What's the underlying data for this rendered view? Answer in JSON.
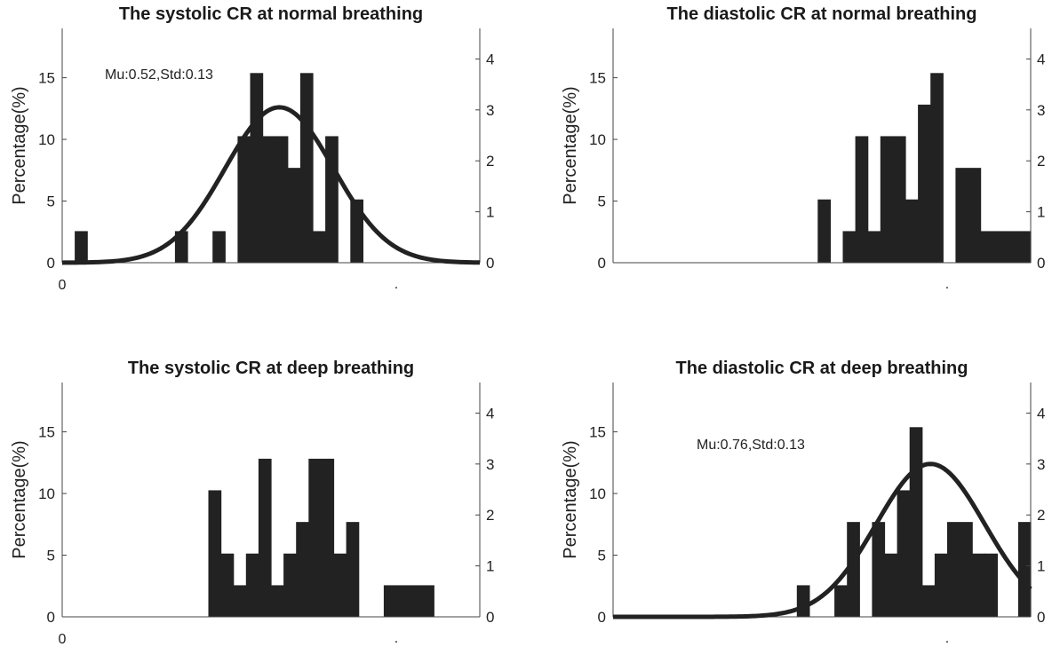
{
  "chart_data": [
    {
      "type": "bar",
      "title": "The systolic CR at normal breathing",
      "ylabel": "Percentage(%)",
      "annotation": "Mu:0.52,Std:0.13",
      "xlim": [
        0,
        1
      ],
      "ylim": [
        0,
        19
      ],
      "yticks": [
        0,
        5,
        10,
        15
      ],
      "y2lim": [
        0,
        4.6
      ],
      "y2ticks": [
        0,
        1,
        2,
        3,
        4
      ],
      "xtick_labels": [
        "0",
        "."
      ],
      "bin_width": 0.03,
      "bins": [
        {
          "x": 0.045,
          "value": 2.56
        },
        {
          "x": 0.285,
          "value": 2.56
        },
        {
          "x": 0.375,
          "value": 2.56
        },
        {
          "x": 0.435,
          "value": 10.26
        },
        {
          "x": 0.465,
          "value": 15.38
        },
        {
          "x": 0.495,
          "value": 10.26
        },
        {
          "x": 0.525,
          "value": 10.26
        },
        {
          "x": 0.555,
          "value": 7.69
        },
        {
          "x": 0.585,
          "value": 15.38
        },
        {
          "x": 0.615,
          "value": 2.56
        },
        {
          "x": 0.645,
          "value": 10.26
        },
        {
          "x": 0.705,
          "value": 5.13
        }
      ],
      "fit": {
        "mu": 0.52,
        "std": 0.13,
        "peak": 12.6
      }
    },
    {
      "type": "bar",
      "title": "The diastolic CR at normal breathing",
      "ylabel": "Percentage(%)",
      "xlim": [
        0,
        1
      ],
      "ylim": [
        0,
        19
      ],
      "yticks": [
        0,
        5,
        10,
        15
      ],
      "y2lim": [
        0,
        4.6
      ],
      "y2ticks": [
        0,
        1,
        2,
        3,
        4
      ],
      "xtick_labels": [
        "."
      ],
      "bin_width": 0.03,
      "bins": [
        {
          "x": 0.505,
          "value": 5.13
        },
        {
          "x": 0.565,
          "value": 2.56
        },
        {
          "x": 0.595,
          "value": 10.26
        },
        {
          "x": 0.625,
          "value": 2.56
        },
        {
          "x": 0.655,
          "value": 10.26
        },
        {
          "x": 0.685,
          "value": 10.26
        },
        {
          "x": 0.715,
          "value": 5.13
        },
        {
          "x": 0.745,
          "value": 12.82
        },
        {
          "x": 0.775,
          "value": 15.38
        },
        {
          "x": 0.835,
          "value": 7.69
        },
        {
          "x": 0.865,
          "value": 7.69
        },
        {
          "x": 0.895,
          "value": 2.56
        },
        {
          "x": 0.925,
          "value": 2.56
        },
        {
          "x": 0.955,
          "value": 2.56
        },
        {
          "x": 0.985,
          "value": 2.56
        }
      ]
    },
    {
      "type": "bar",
      "title": "The systolic CR at deep breathing",
      "ylabel": "Percentage(%)",
      "xlim": [
        0,
        1
      ],
      "ylim": [
        0,
        19
      ],
      "yticks": [
        0,
        5,
        10,
        15
      ],
      "y2lim": [
        0,
        4.6
      ],
      "y2ticks": [
        0,
        1,
        2,
        3,
        4
      ],
      "xtick_labels": [
        "0",
        "."
      ],
      "bin_width": 0.03,
      "bins": [
        {
          "x": 0.365,
          "value": 10.26
        },
        {
          "x": 0.395,
          "value": 5.13
        },
        {
          "x": 0.425,
          "value": 2.56
        },
        {
          "x": 0.455,
          "value": 5.13
        },
        {
          "x": 0.485,
          "value": 12.82
        },
        {
          "x": 0.515,
          "value": 2.56
        },
        {
          "x": 0.545,
          "value": 5.13
        },
        {
          "x": 0.575,
          "value": 7.69
        },
        {
          "x": 0.605,
          "value": 12.82
        },
        {
          "x": 0.635,
          "value": 12.82
        },
        {
          "x": 0.665,
          "value": 5.13
        },
        {
          "x": 0.695,
          "value": 7.69
        },
        {
          "x": 0.785,
          "value": 2.56
        },
        {
          "x": 0.815,
          "value": 2.56
        },
        {
          "x": 0.845,
          "value": 2.56
        },
        {
          "x": 0.875,
          "value": 2.56
        }
      ]
    },
    {
      "type": "bar",
      "title": "The diastolic CR at deep breathing",
      "ylabel": "Percentage(%)",
      "annotation": "Mu:0.76,Std:0.13",
      "xlim": [
        0,
        1
      ],
      "ylim": [
        0,
        19
      ],
      "yticks": [
        0,
        5,
        10,
        15
      ],
      "y2lim": [
        0,
        4.6
      ],
      "y2ticks": [
        0,
        1,
        2,
        3,
        4
      ],
      "xtick_labels": [
        "."
      ],
      "bin_width": 0.03,
      "bins": [
        {
          "x": 0.455,
          "value": 2.56
        },
        {
          "x": 0.545,
          "value": 2.56
        },
        {
          "x": 0.575,
          "value": 7.69
        },
        {
          "x": 0.635,
          "value": 7.69
        },
        {
          "x": 0.665,
          "value": 5.13
        },
        {
          "x": 0.695,
          "value": 10.26
        },
        {
          "x": 0.725,
          "value": 15.38
        },
        {
          "x": 0.755,
          "value": 2.56
        },
        {
          "x": 0.785,
          "value": 5.13
        },
        {
          "x": 0.815,
          "value": 7.69
        },
        {
          "x": 0.845,
          "value": 7.69
        },
        {
          "x": 0.875,
          "value": 5.13
        },
        {
          "x": 0.905,
          "value": 5.13
        },
        {
          "x": 0.985,
          "value": 7.69
        }
      ],
      "fit": {
        "mu": 0.76,
        "std": 0.13,
        "peak": 12.4
      }
    }
  ]
}
